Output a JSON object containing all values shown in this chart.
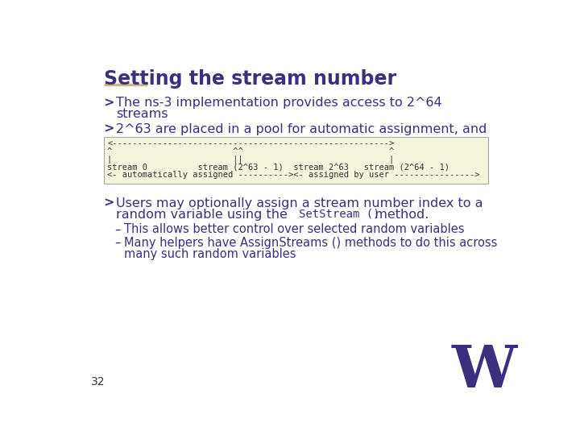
{
  "title": "Setting the stream number",
  "title_color": "#3B2F7E",
  "underline_color": "#C8B882",
  "bg_color": "#FFFFFF",
  "bullet_color": "#3B2F7E",
  "bullet_symbol": ">",
  "bullet1_line1": "The ns-3 implementation provides access to 2^64",
  "bullet1_line2": "streams",
  "bullet2": "2^63 are placed in a pool for automatic assignment, and",
  "code_box_bg": "#F5F5DC",
  "code_box_border": "#AAAAAA",
  "code_lines": [
    "<------------------------------------------------------->",
    "^                        ^^                             ^",
    "|                        ||                             |",
    "stream 0          stream (2^63 - 1)  stream 2^63   stream (2^64 - 1)",
    "<- automatically assigned ----------><- assigned by user ---------------->"
  ],
  "bullet3_line1": "Users may optionally assign a stream number index to a",
  "bullet3_line2_pre": "random variable using the ",
  "bullet3_code": "SetStream ()",
  "bullet3_line2_post": "  method.",
  "sub_bullet1": "This allows better control over selected random variables",
  "sub_bullet2_line1": "Many helpers have AssignStreams () methods to do this across",
  "sub_bullet2_line2": "many such random variables",
  "page_num": "32",
  "uw_color": "#3B2F7E",
  "body_text_color": "#3B2F7E",
  "font_size_title": 17,
  "font_size_body": 11.5,
  "font_size_code_box": 7.5,
  "font_size_sub": 10.5,
  "font_size_page": 10
}
